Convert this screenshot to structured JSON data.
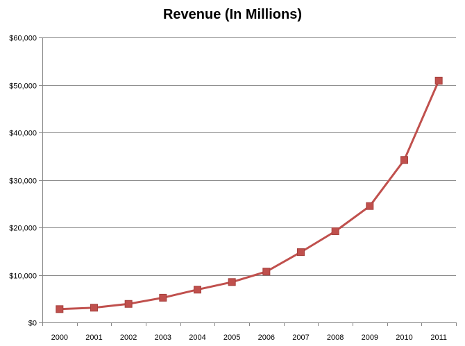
{
  "chart_data": {
    "type": "line",
    "title": "Revenue (In Millions)",
    "xlabel": "",
    "ylabel": "",
    "categories": [
      "2000",
      "2001",
      "2002",
      "2003",
      "2004",
      "2005",
      "2006",
      "2007",
      "2008",
      "2009",
      "2010",
      "2011"
    ],
    "series": [
      {
        "values": [
          2800,
          3100,
          3900,
          5200,
          6900,
          8500,
          10700,
          14800,
          19200,
          24500,
          34200,
          50900
        ]
      }
    ],
    "ylim": [
      0,
      60000
    ],
    "yticks": [
      0,
      10000,
      20000,
      30000,
      40000,
      50000,
      60000
    ],
    "ytick_labels": [
      "$0",
      "$10,000",
      "$20,000",
      "$30,000",
      "$40,000",
      "$50,000",
      "$60,000"
    ],
    "grid": "horizontal",
    "legend": "none",
    "colors": {
      "series": "#C0504D",
      "gridline": "#868686",
      "axis": "#868686"
    }
  }
}
